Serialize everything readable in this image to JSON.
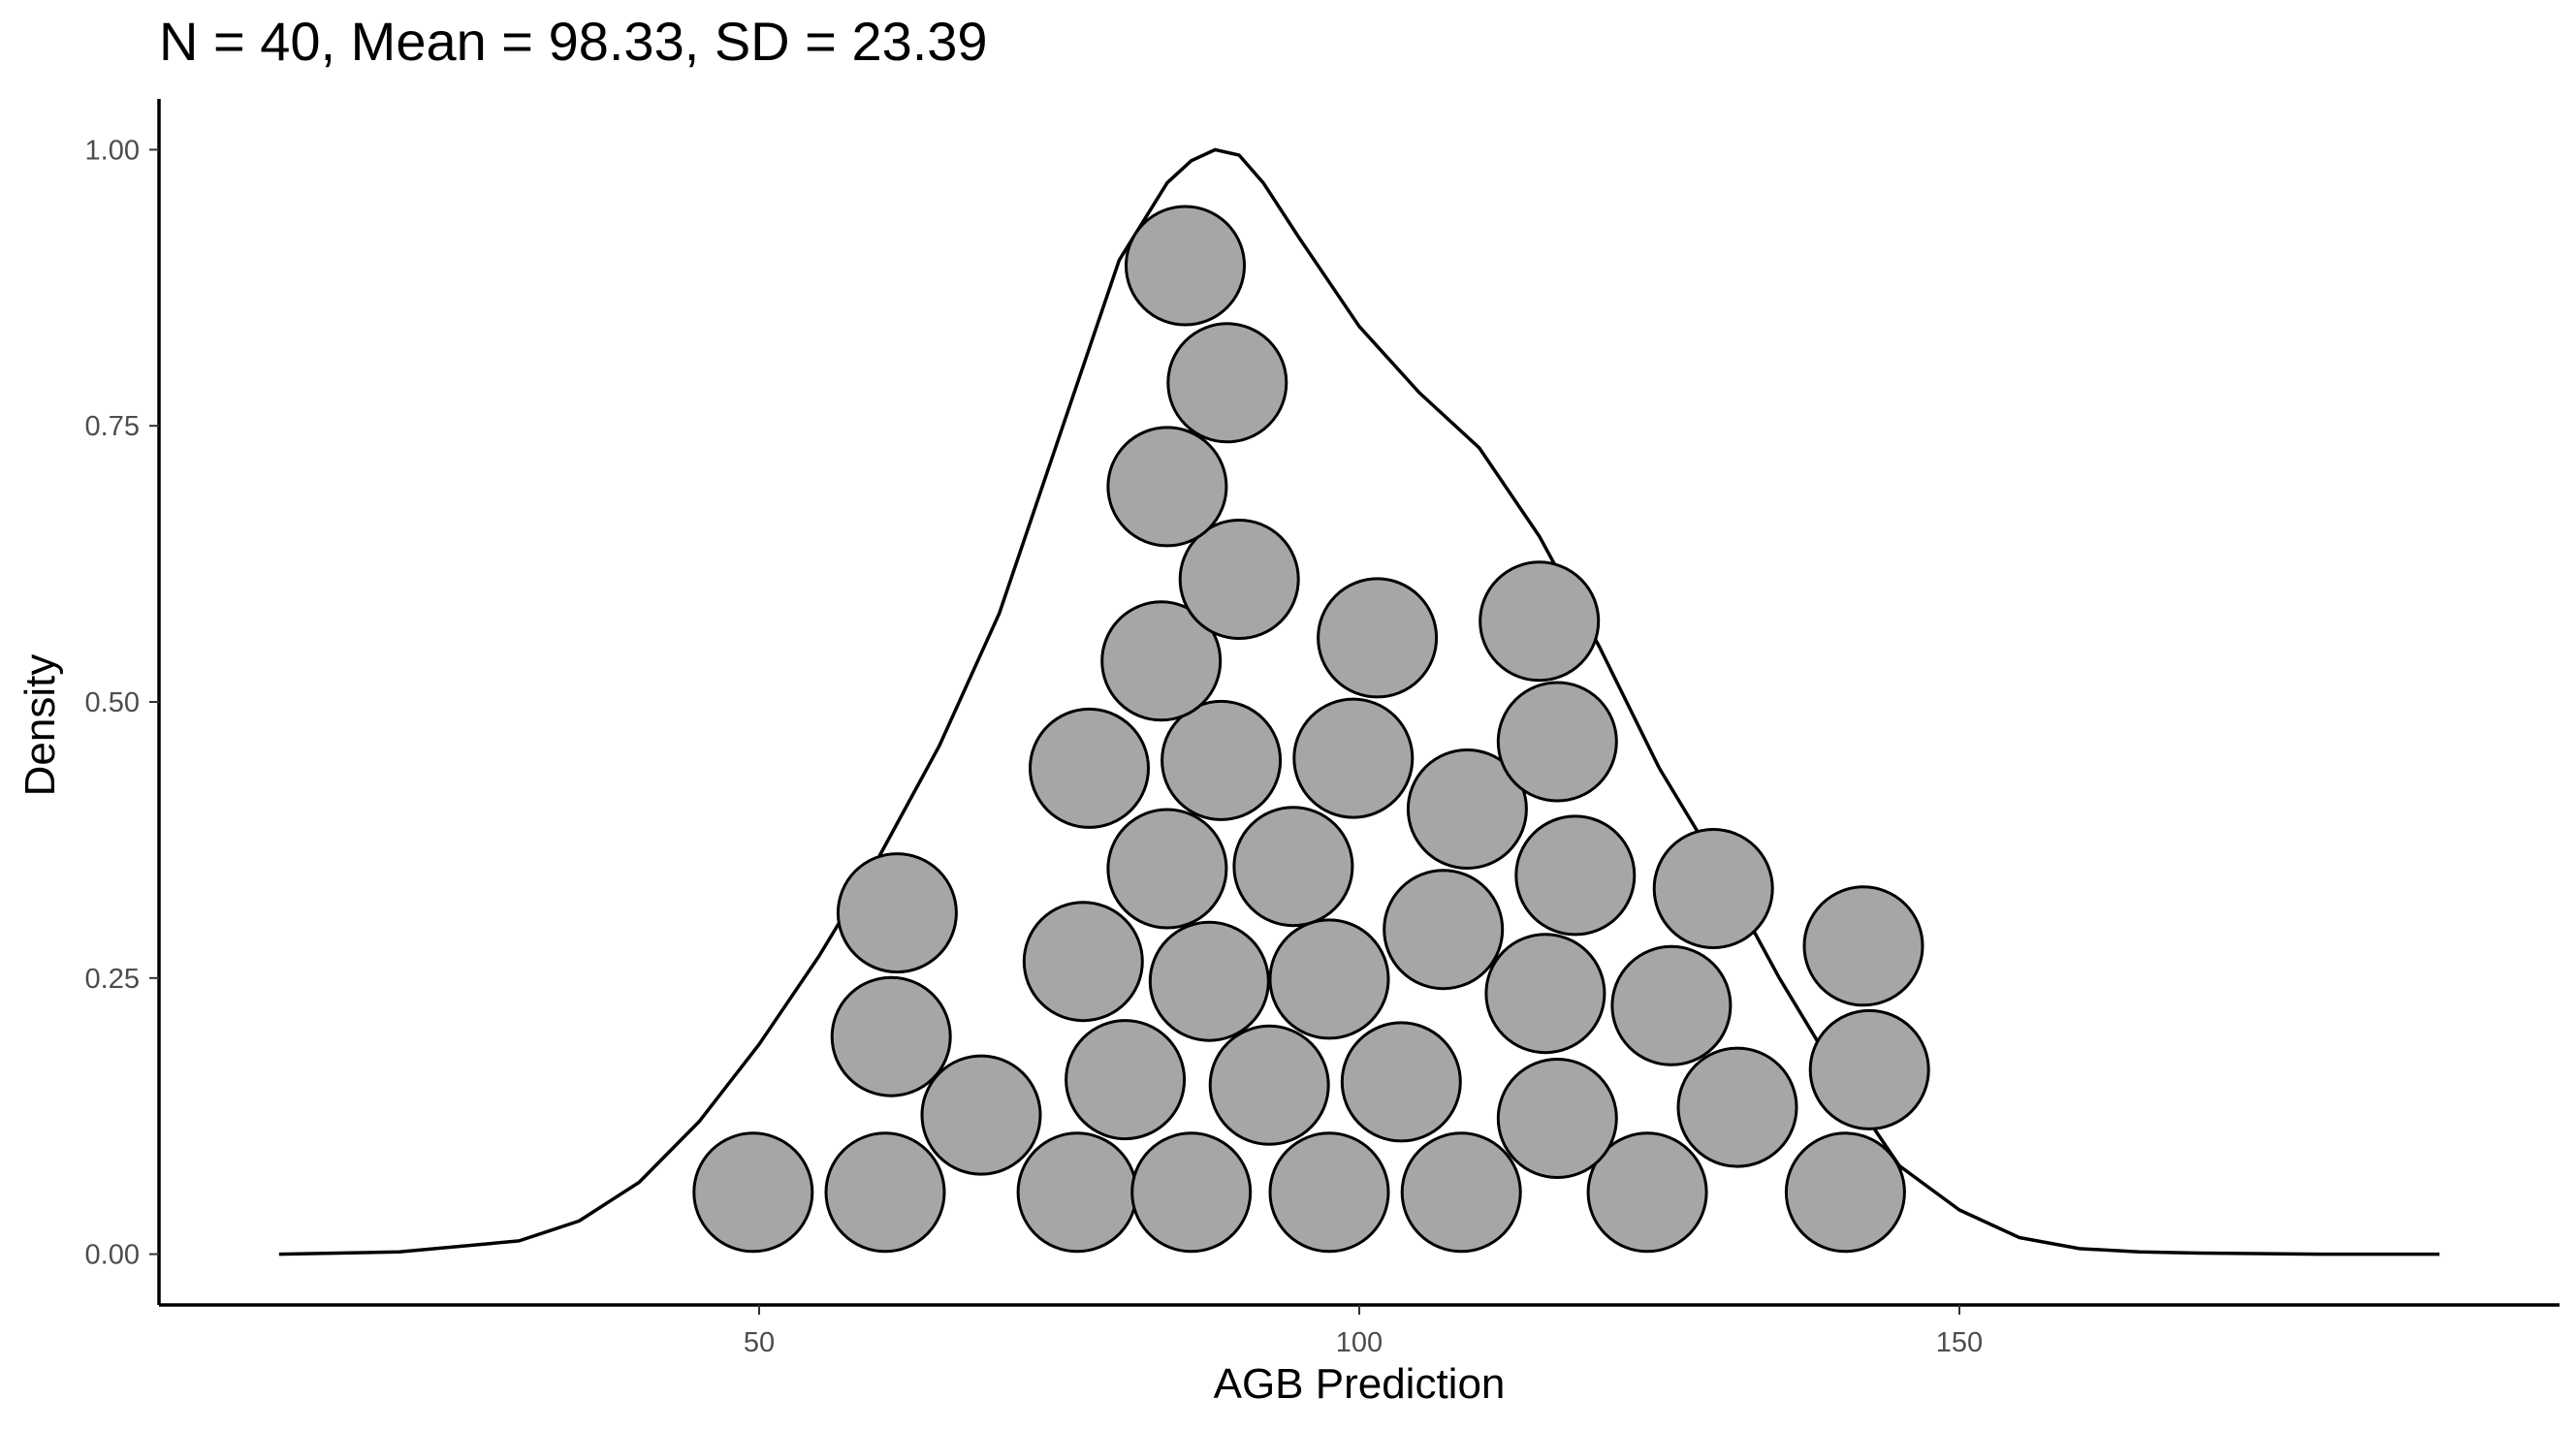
{
  "chart_data": {
    "type": "scatter",
    "title": "N = 40, Mean = 98.33, SD = 23.39",
    "xlabel": "AGB Prediction",
    "ylabel": "Density",
    "xlim": [
      0,
      200
    ],
    "ylim": [
      -0.046,
      1.046
    ],
    "x_ticks": [
      50,
      100,
      150
    ],
    "x_tick_labels": [
      "50",
      "100",
      "150"
    ],
    "y_ticks": [
      0,
      0.25,
      0.5,
      0.75,
      1.0
    ],
    "y_tick_labels": [
      "0.00",
      "0.25",
      "0.50",
      "0.75",
      "1.00"
    ],
    "grid": false,
    "legend": "none",
    "colors": {
      "point_fill": "#a6a6a6",
      "point_stroke": "#000000",
      "curve": "#000000",
      "axis": "#000000",
      "tick_text": "#4d4d4d"
    },
    "density_curve": {
      "x": [
        10,
        20,
        30,
        35,
        40,
        45,
        50,
        55,
        60,
        65,
        70,
        75,
        80,
        84,
        86,
        88,
        90,
        92,
        95,
        100,
        105,
        110,
        115,
        120,
        125,
        130,
        135,
        140,
        145,
        150,
        155,
        160,
        165,
        170,
        180,
        190
      ],
      "y": [
        0.0,
        0.002,
        0.012,
        0.03,
        0.065,
        0.12,
        0.19,
        0.27,
        0.36,
        0.46,
        0.58,
        0.74,
        0.9,
        0.97,
        0.99,
        1.0,
        0.995,
        0.97,
        0.92,
        0.84,
        0.78,
        0.73,
        0.65,
        0.55,
        0.44,
        0.35,
        0.25,
        0.16,
        0.08,
        0.04,
        0.015,
        0.005,
        0.002,
        0.001,
        0.0,
        0.0
      ]
    },
    "points": [
      {
        "x": 49.5,
        "y": 0.056
      },
      {
        "x": 60.5,
        "y": 0.056
      },
      {
        "x": 76.5,
        "y": 0.056
      },
      {
        "x": 86.0,
        "y": 0.056
      },
      {
        "x": 97.5,
        "y": 0.056
      },
      {
        "x": 108.5,
        "y": 0.056
      },
      {
        "x": 124.0,
        "y": 0.056
      },
      {
        "x": 140.5,
        "y": 0.056
      },
      {
        "x": 68.5,
        "y": 0.126
      },
      {
        "x": 80.5,
        "y": 0.158
      },
      {
        "x": 92.5,
        "y": 0.153
      },
      {
        "x": 103.5,
        "y": 0.156
      },
      {
        "x": 116.5,
        "y": 0.123
      },
      {
        "x": 131.5,
        "y": 0.133
      },
      {
        "x": 142.5,
        "y": 0.167
      },
      {
        "x": 61.0,
        "y": 0.197
      },
      {
        "x": 77.0,
        "y": 0.265
      },
      {
        "x": 87.5,
        "y": 0.247
      },
      {
        "x": 97.5,
        "y": 0.249
      },
      {
        "x": 107.0,
        "y": 0.294
      },
      {
        "x": 115.5,
        "y": 0.236
      },
      {
        "x": 126.0,
        "y": 0.225
      },
      {
        "x": 142.0,
        "y": 0.279
      },
      {
        "x": 61.5,
        "y": 0.309
      },
      {
        "x": 84.0,
        "y": 0.349
      },
      {
        "x": 94.5,
        "y": 0.351
      },
      {
        "x": 118.0,
        "y": 0.343
      },
      {
        "x": 129.5,
        "y": 0.331
      },
      {
        "x": 77.5,
        "y": 0.44
      },
      {
        "x": 88.5,
        "y": 0.447
      },
      {
        "x": 99.5,
        "y": 0.449
      },
      {
        "x": 109.0,
        "y": 0.403
      },
      {
        "x": 116.5,
        "y": 0.464
      },
      {
        "x": 83.5,
        "y": 0.537
      },
      {
        "x": 101.5,
        "y": 0.558
      },
      {
        "x": 115.0,
        "y": 0.573
      },
      {
        "x": 90.0,
        "y": 0.611
      },
      {
        "x": 84.0,
        "y": 0.695
      },
      {
        "x": 89.0,
        "y": 0.789
      },
      {
        "x": 85.5,
        "y": 0.895
      }
    ]
  }
}
